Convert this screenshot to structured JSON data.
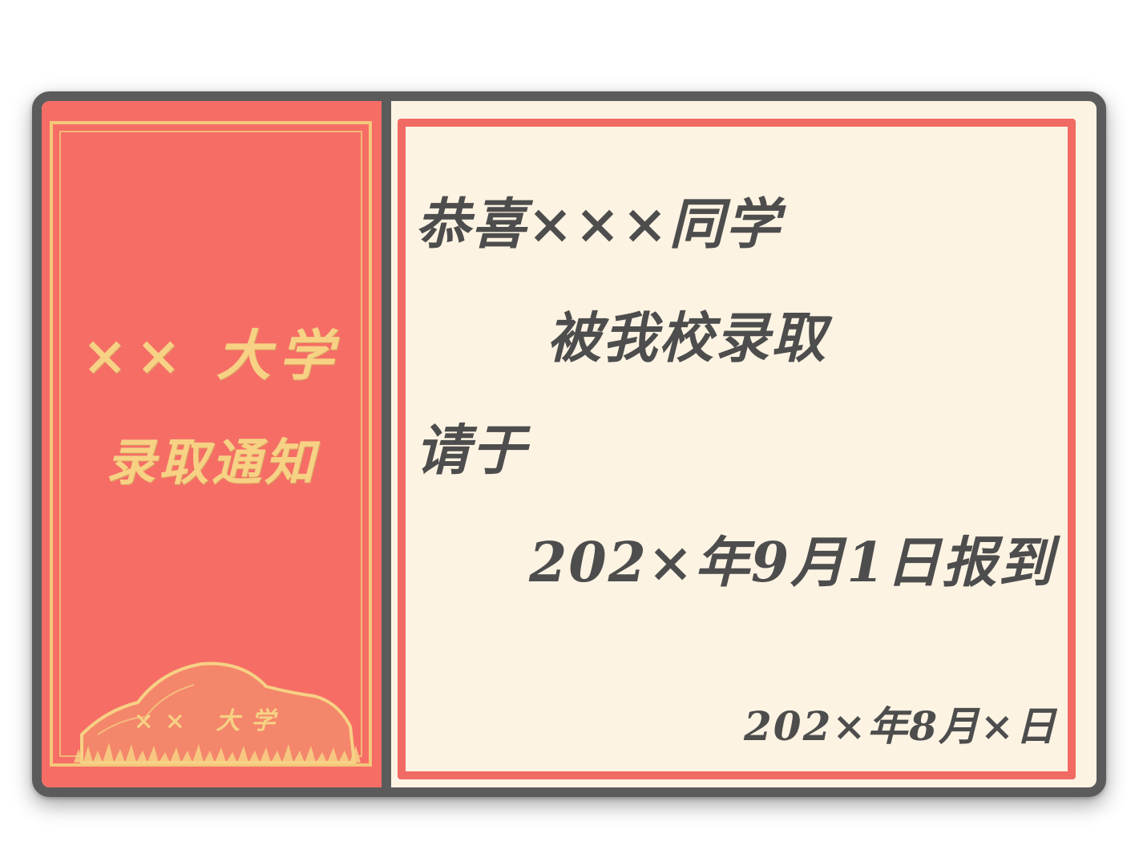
{
  "cover": {
    "school_name": "×× 大学",
    "notice_title": "录取通知",
    "rock_label": "×× 大学"
  },
  "letter": {
    "greeting": "恭喜×××同学",
    "admitted": "被我校录取",
    "please": "请于",
    "report_date": "202×年9月1日报到",
    "signature_date": "202×年8月×日"
  },
  "colors": {
    "frame": "#5b5b5b",
    "cover_red": "#f66d66",
    "gold": "#f7d184",
    "paper": "#fcf3e3",
    "letter_border": "#f16a63",
    "ink": "#4d4d4d"
  }
}
